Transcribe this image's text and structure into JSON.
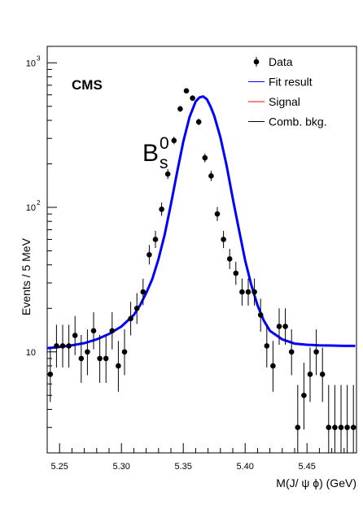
{
  "chart_data": {
    "type": "scatter",
    "experiment_label": "CMS",
    "peak_label": "B",
    "peak_label_sub": "s",
    "peak_label_sup": "0",
    "xlabel": "M(J/ ψ  ϕ) (GeV)",
    "ylabel": "Events / 5 MeV",
    "xlim": [
      5.24,
      5.49
    ],
    "ylim": [
      2.0,
      1300
    ],
    "y_scale": "log",
    "x_ticks": [
      "5.25",
      "5.30",
      "5.35",
      "5.40",
      "5.45"
    ],
    "x_tick_values": [
      5.25,
      5.3,
      5.35,
      5.4,
      5.45
    ],
    "y_tick_values": [
      10,
      100,
      1000
    ],
    "y_ticks": [
      {
        "base": "10",
        "exp": ""
      },
      {
        "base": "10",
        "exp": "2"
      },
      {
        "base": "10",
        "exp": "3"
      }
    ],
    "legend_position": "top-right",
    "legend": [
      {
        "label": "Data",
        "kind": "marker",
        "color": "#000000"
      },
      {
        "label": "Fit result",
        "kind": "line",
        "color": "#0000ff"
      },
      {
        "label": "Signal",
        "kind": "line",
        "color": "#ff0000"
      },
      {
        "label": "Comb. bkg.",
        "kind": "line",
        "color": "#000000"
      }
    ],
    "series": [
      {
        "name": "Data",
        "color": "#000000",
        "x": [
          5.2425,
          5.2475,
          5.2525,
          5.2575,
          5.2625,
          5.2675,
          5.2725,
          5.2775,
          5.2825,
          5.2875,
          5.2925,
          5.2975,
          5.3025,
          5.3075,
          5.3125,
          5.3175,
          5.3225,
          5.3275,
          5.3325,
          5.3375,
          5.3425,
          5.3475,
          5.3525,
          5.3575,
          5.3625,
          5.3675,
          5.3725,
          5.3775,
          5.3825,
          5.3875,
          5.3925,
          5.3975,
          5.4025,
          5.4075,
          5.4125,
          5.4175,
          5.4225,
          5.4275,
          5.4325,
          5.4375,
          5.4425,
          5.4475,
          5.4525,
          5.4575,
          5.4625,
          5.4675,
          5.4725,
          5.4775,
          5.4825,
          5.4875
        ],
        "y": [
          7,
          11,
          11,
          11,
          13,
          9,
          10,
          14,
          9,
          9,
          14,
          8,
          10,
          17,
          20,
          26,
          47,
          60,
          97,
          170,
          290,
          480,
          640,
          570,
          390,
          220,
          165,
          90,
          60,
          44,
          35,
          26,
          26,
          26,
          18,
          11,
          8,
          15,
          15,
          10,
          3,
          5,
          7,
          10,
          7,
          3,
          3,
          3,
          3,
          3
        ],
        "err_low": [
          2.5,
          3.2,
          3.2,
          3.2,
          3.5,
          2.9,
          3.1,
          3.6,
          2.9,
          2.9,
          3.6,
          2.7,
          3.1,
          4.0,
          4.4,
          5.0,
          6.8,
          7.7,
          9.8,
          13,
          17,
          22,
          25,
          24,
          20,
          15,
          13,
          9.5,
          7.7,
          6.6,
          5.9,
          5.1,
          5.1,
          5.1,
          4.2,
          3.2,
          2.7,
          3.8,
          3.8,
          3.1,
          1.6,
          2.1,
          2.5,
          3.1,
          2.5,
          1.6,
          1.6,
          1.6,
          1.6,
          1.6
        ],
        "err_high": [
          3.7,
          4.4,
          4.4,
          4.4,
          4.7,
          4.1,
          4.3,
          4.8,
          4.1,
          4.1,
          4.8,
          3.9,
          4.3,
          5.2,
          5.5,
          6.1,
          7.9,
          8.8,
          11,
          14,
          18,
          23,
          26,
          25,
          21,
          16,
          14,
          10.5,
          8.8,
          7.7,
          7.0,
          6.2,
          6.2,
          6.2,
          5.3,
          4.4,
          3.9,
          5.0,
          5.0,
          4.3,
          2.9,
          3.4,
          3.7,
          4.3,
          3.7,
          2.9,
          2.9,
          2.9,
          2.9,
          2.9
        ]
      },
      {
        "name": "Fit result",
        "color": "#0000ff",
        "x": [
          5.24,
          5.25,
          5.26,
          5.27,
          5.28,
          5.29,
          5.3,
          5.31,
          5.315,
          5.32,
          5.325,
          5.33,
          5.335,
          5.34,
          5.345,
          5.35,
          5.355,
          5.36,
          5.363,
          5.366,
          5.369,
          5.372,
          5.375,
          5.38,
          5.385,
          5.39,
          5.395,
          5.4,
          5.405,
          5.41,
          5.415,
          5.42,
          5.43,
          5.44,
          5.45,
          5.46,
          5.47,
          5.48,
          5.489
        ],
        "y": [
          10.6,
          10.8,
          11.1,
          11.5,
          12.2,
          13.3,
          15.0,
          18.0,
          21.0,
          25.5,
          32.0,
          44.0,
          65.0,
          105.0,
          175.0,
          285.0,
          420.0,
          540.0,
          575.0,
          585.0,
          560.0,
          500.0,
          430.0,
          305.0,
          195.0,
          115.0,
          70.0,
          43.0,
          29.0,
          21.0,
          16.5,
          14.0,
          12.2,
          11.4,
          11.2,
          11.1,
          11.05,
          11.0,
          11.0
        ]
      }
    ]
  }
}
